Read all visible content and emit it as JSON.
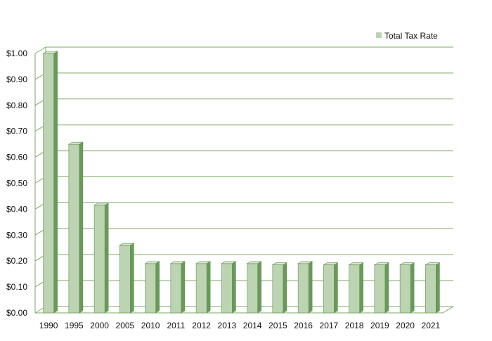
{
  "chart_data": {
    "type": "bar",
    "categories": [
      "1990",
      "1995",
      "2000",
      "2005",
      "2010",
      "2011",
      "2012",
      "2013",
      "2014",
      "2015",
      "2016",
      "2017",
      "2018",
      "2019",
      "2020",
      "2021"
    ],
    "series": [
      {
        "name": "Total Tax Rate",
        "values": [
          1.0,
          0.65,
          0.415,
          0.26,
          0.19,
          0.19,
          0.19,
          0.19,
          0.19,
          0.185,
          0.19,
          0.185,
          0.185,
          0.185,
          0.185,
          0.185
        ]
      }
    ],
    "title": "",
    "xlabel": "",
    "ylabel": "",
    "ylim": [
      0,
      1.0
    ],
    "y_ticks": [
      "$0.00",
      "$0.10",
      "$0.20",
      "$0.30",
      "$0.40",
      "$0.50",
      "$0.60",
      "$0.70",
      "$0.80",
      "$0.90",
      "$1.00"
    ],
    "grid": true,
    "legend_position": "top-right",
    "colors": {
      "bar_front": "#bcd4b2",
      "bar_side": "#6a9a5a",
      "bar_top": "#d9e6d2",
      "bar_edge": "#5f8f50",
      "grid": "#7aa865",
      "axis": "#7aa865",
      "wall": "#ffffff"
    }
  }
}
